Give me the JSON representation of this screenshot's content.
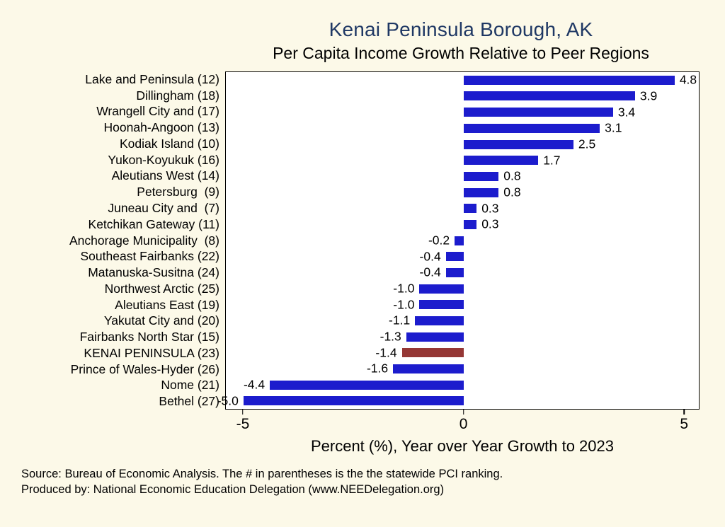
{
  "chart_data": {
    "type": "bar",
    "orientation": "horizontal",
    "title": "Kenai Peninsula Borough, AK",
    "subtitle": "Per Capita Income Growth Relative to Peer Regions",
    "xlabel": "Percent (%), Year over Year Growth to 2023",
    "xlim": [
      -5.4,
      5.35
    ],
    "xticks": [
      -5,
      0,
      5
    ],
    "grid": false,
    "legend": "none",
    "categories": [
      "Lake and Peninsula (12)",
      "Dillingham (18)",
      "Wrangell City and (17)",
      "Hoonah-Angoon (13)",
      "Kodiak Island (10)",
      "Yukon-Koyukuk (16)",
      "Aleutians West (14)",
      "Petersburg  (9)",
      "Juneau City and  (7)",
      "Ketchikan Gateway (11)",
      "Anchorage Municipality  (8)",
      "Southeast Fairbanks (22)",
      "Matanuska-Susitna (24)",
      "Northwest Arctic (25)",
      "Aleutians East (19)",
      "Yakutat City and (20)",
      "Fairbanks North Star (15)",
      "KENAI PENINSULA (23)",
      "Prince of Wales-Hyder (26)",
      "Nome (21)",
      "Bethel (27)"
    ],
    "values": [
      4.8,
      3.9,
      3.4,
      3.1,
      2.5,
      1.7,
      0.8,
      0.8,
      0.3,
      0.3,
      -0.2,
      -0.4,
      -0.4,
      -1.0,
      -1.0,
      -1.1,
      -1.3,
      -1.4,
      -1.6,
      -4.4,
      -5.0
    ],
    "highlight_index": 17
  },
  "colors": {
    "background": "#fcf9e8",
    "title": "#1f3864",
    "bar": "#1c1ccd",
    "highlight_bar": "#953735",
    "text": "#000000"
  },
  "footer": {
    "source": "Source: Bureau of Economic Analysis. The # in parentheses is the the statewide PCI ranking.",
    "produced_by": "Produced by: National Economic Education Delegation (www.NEEDelegation.org)"
  }
}
